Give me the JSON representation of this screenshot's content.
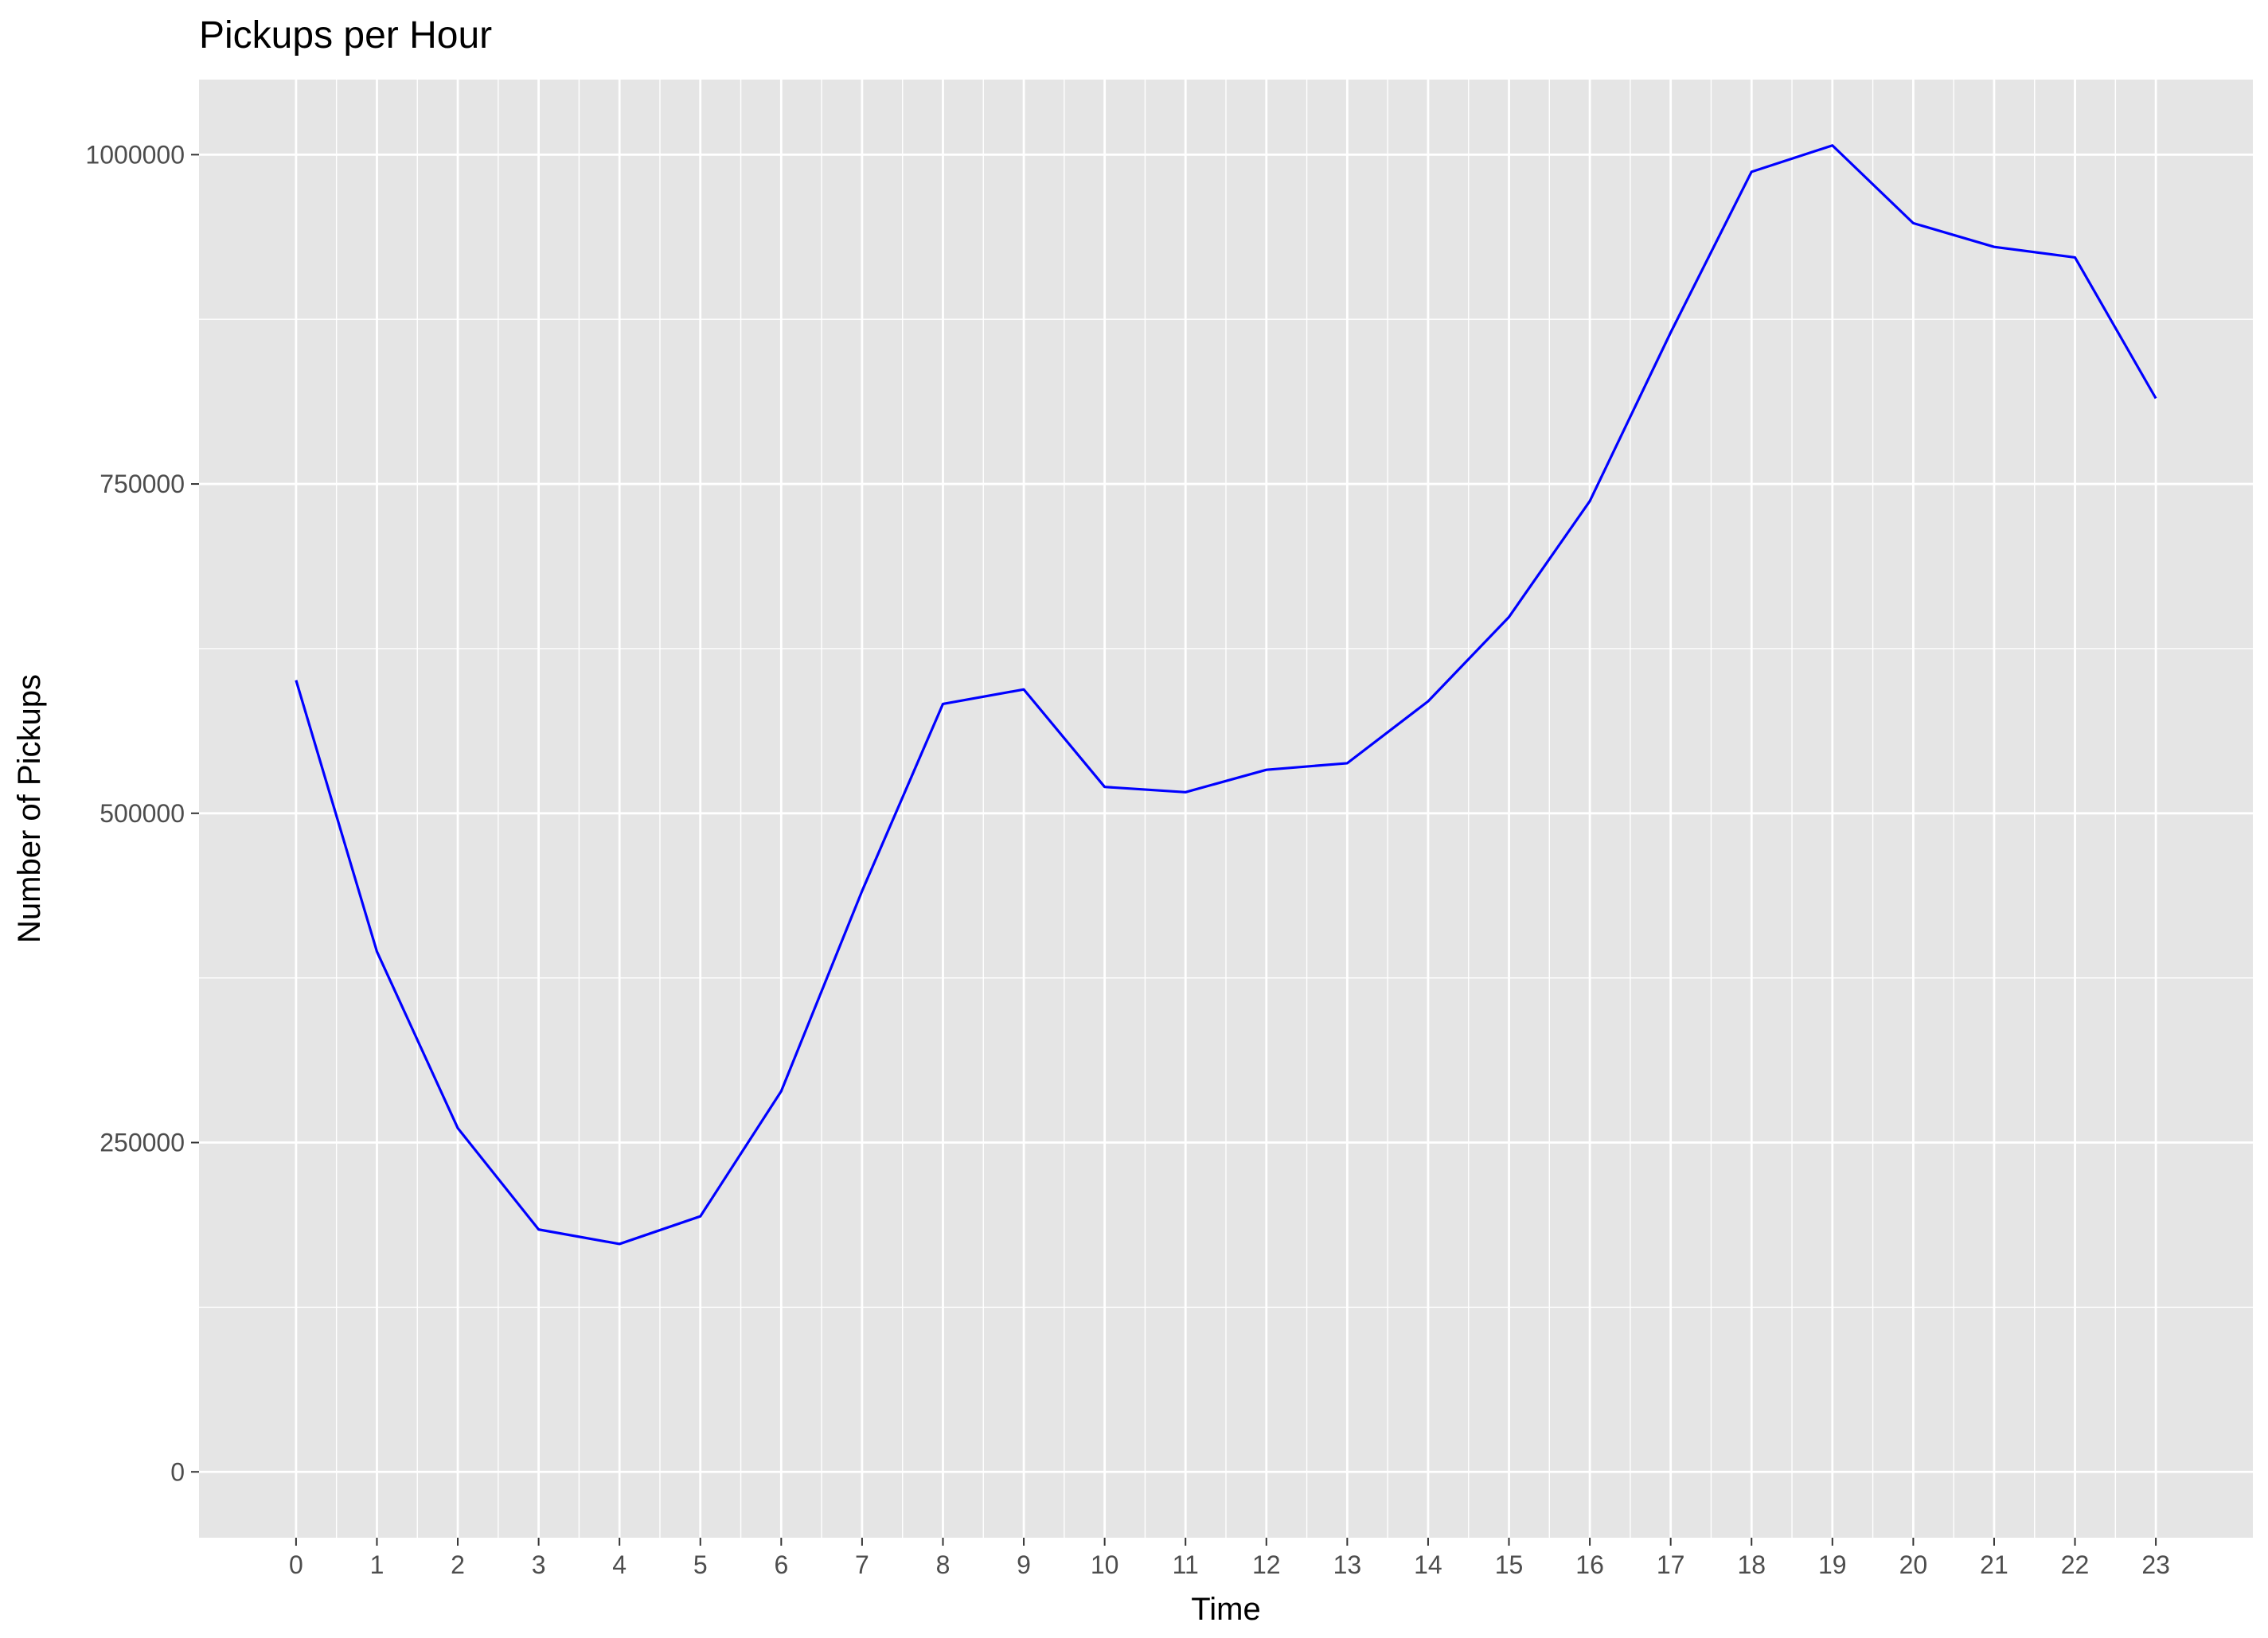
{
  "chart_data": {
    "type": "line",
    "title": "Pickups per Hour",
    "xlabel": "Time",
    "ylabel": "Number of Pickups",
    "x": [
      0,
      1,
      2,
      3,
      4,
      5,
      6,
      7,
      8,
      9,
      10,
      11,
      12,
      13,
      14,
      15,
      16,
      17,
      18,
      19,
      20,
      21,
      22,
      23
    ],
    "x_tick_labels": [
      "0",
      "1",
      "2",
      "3",
      "4",
      "5",
      "6",
      "7",
      "8",
      "9",
      "10",
      "11",
      "12",
      "13",
      "14",
      "15",
      "16",
      "17",
      "18",
      "19",
      "20",
      "21",
      "22",
      "23"
    ],
    "series": [
      {
        "values": [
          601000,
          395000,
          261000,
          184000,
          173000,
          194000,
          289000,
          441000,
          583000,
          594000,
          520000,
          516000,
          533000,
          538000,
          585000,
          649000,
          737000,
          865000,
          987000,
          1007000,
          948000,
          930000,
          922000,
          815000
        ],
        "color": "#0000ff"
      }
    ],
    "y_ticks": [
      0,
      250000,
      500000,
      750000,
      1000000
    ],
    "y_tick_labels": [
      "0",
      "250000",
      "500000",
      "750000",
      "1000000"
    ],
    "xlim": [
      -1.2,
      24.2
    ],
    "ylim": [
      -50000,
      1057000
    ],
    "grid": true,
    "panel_background": "#e5e5e5",
    "grid_color": "#ffffff"
  }
}
